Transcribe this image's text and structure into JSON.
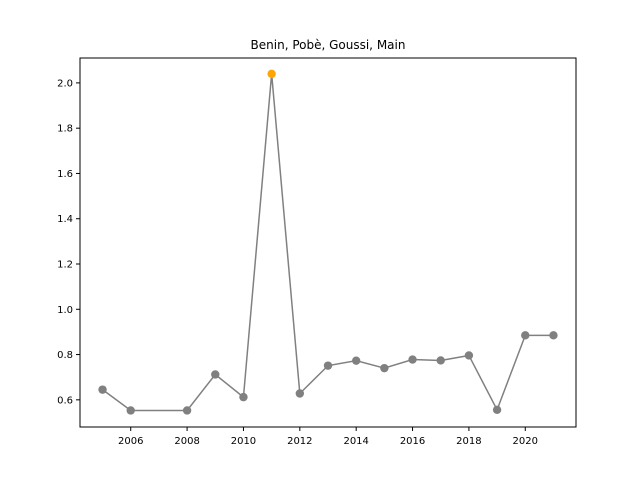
{
  "chart_data": {
    "type": "line",
    "title": "Benin, Pobè, Goussi, Main",
    "xlabel": "",
    "ylabel": "",
    "xlim": [
      2004.2,
      2021.8
    ],
    "ylim": [
      0.48,
      2.11
    ],
    "x_ticks": [
      2006,
      2008,
      2010,
      2012,
      2014,
      2016,
      2018,
      2020
    ],
    "y_ticks": [
      0.6,
      0.8,
      1.0,
      1.2,
      1.4,
      1.6,
      1.8,
      2.0
    ],
    "grid": false,
    "series": [
      {
        "x": [
          2005,
          2006,
          2008,
          2009,
          2010,
          2011,
          2012,
          2013,
          2014,
          2015,
          2016,
          2017,
          2018,
          2019,
          2020,
          2021
        ],
        "values": [
          0.645,
          0.553,
          0.553,
          0.712,
          0.612,
          2.04,
          0.628,
          0.751,
          0.773,
          0.74,
          0.778,
          0.774,
          0.796,
          0.556,
          0.885,
          0.885
        ],
        "color": "#808080"
      }
    ],
    "highlight": {
      "x": 2011,
      "y": 2.04,
      "color": "#ffa500"
    }
  }
}
